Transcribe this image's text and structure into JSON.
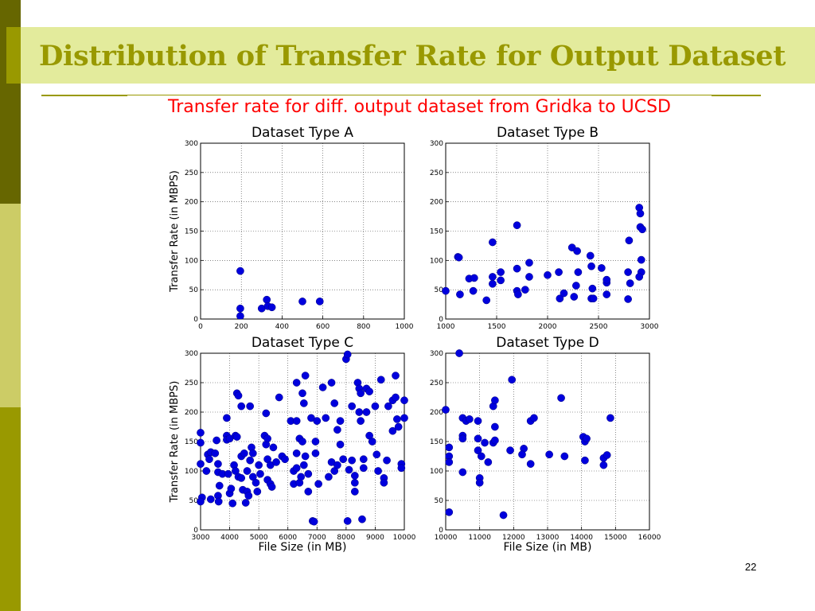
{
  "slide": {
    "title": "Distribution of Transfer Rate for Output Dataset",
    "chart_title": "Transfer rate for diff. output dataset from Gridka to UCSD",
    "page_number": "22",
    "colors": {
      "title_text": "#999900",
      "title_band": "#e3eb9c",
      "sidebar_top": "#666600",
      "sidebar_mid": "#cccc66",
      "sidebar_bottom": "#999900",
      "chart_title": "#ff0000",
      "point": "#0000dd"
    }
  },
  "chart_data": [
    {
      "type": "scatter",
      "title": "Dataset Type A",
      "xlabel": "",
      "ylabel": "Transfer Rate (in MBPS)",
      "xlim": [
        0,
        1000
      ],
      "ylim": [
        0,
        300
      ],
      "xticks": [
        "0",
        "200",
        "400",
        "600",
        "800",
        "1000"
      ],
      "yticks": [
        "0",
        "50",
        "100",
        "150",
        "200",
        "250",
        "300"
      ],
      "grid": true,
      "points": [
        [
          195,
          82
        ],
        [
          195,
          18
        ],
        [
          195,
          5
        ],
        [
          300,
          18
        ],
        [
          325,
          33
        ],
        [
          330,
          22
        ],
        [
          350,
          20
        ],
        [
          500,
          30
        ],
        [
          585,
          30
        ]
      ]
    },
    {
      "type": "scatter",
      "title": "Dataset Type B",
      "xlabel": "",
      "ylabel": "",
      "xlim": [
        1000,
        3000
      ],
      "ylim": [
        0,
        300
      ],
      "xticks": [
        "1000",
        "1500",
        "2000",
        "2500",
        "3000"
      ],
      "yticks": [
        "0",
        "50",
        "100",
        "150",
        "200",
        "250",
        "300"
      ],
      "grid": true,
      "points": [
        [
          1000,
          48
        ],
        [
          1120,
          106
        ],
        [
          1130,
          105
        ],
        [
          1140,
          42
        ],
        [
          1230,
          69
        ],
        [
          1280,
          70
        ],
        [
          1270,
          48
        ],
        [
          1400,
          32
        ],
        [
          1460,
          131
        ],
        [
          1460,
          72
        ],
        [
          1460,
          60
        ],
        [
          1540,
          80
        ],
        [
          1540,
          66
        ],
        [
          1700,
          160
        ],
        [
          1700,
          86
        ],
        [
          1700,
          48
        ],
        [
          1710,
          42
        ],
        [
          1780,
          50
        ],
        [
          1820,
          96
        ],
        [
          1820,
          72
        ],
        [
          2000,
          75
        ],
        [
          2110,
          80
        ],
        [
          2120,
          35
        ],
        [
          2160,
          44
        ],
        [
          2240,
          122
        ],
        [
          2260,
          38
        ],
        [
          2280,
          57
        ],
        [
          2290,
          116
        ],
        [
          2300,
          80
        ],
        [
          2420,
          108
        ],
        [
          2430,
          90
        ],
        [
          2440,
          52
        ],
        [
          2430,
          35
        ],
        [
          2450,
          35
        ],
        [
          2530,
          87
        ],
        [
          2580,
          62
        ],
        [
          2580,
          67
        ],
        [
          2580,
          42
        ],
        [
          2790,
          80
        ],
        [
          2790,
          34
        ],
        [
          2800,
          134
        ],
        [
          2810,
          61
        ],
        [
          2900,
          190
        ],
        [
          2910,
          180
        ],
        [
          2910,
          157
        ],
        [
          2930,
          153
        ],
        [
          2920,
          101
        ],
        [
          2920,
          80
        ],
        [
          2900,
          72
        ]
      ]
    },
    {
      "type": "scatter",
      "title": "Dataset Type C",
      "xlabel": "File Size (in MB)",
      "ylabel": "Transfer Rate (in MBPS)",
      "xlim": [
        3000,
        10000
      ],
      "ylim": [
        0,
        300
      ],
      "xticks": [
        "3000",
        "4000",
        "5000",
        "6000",
        "7000",
        "8000",
        "9000",
        "10000"
      ],
      "yticks": [
        "0",
        "50",
        "100",
        "150",
        "200",
        "250",
        "300"
      ],
      "grid": true,
      "points": [
        [
          3000,
          165
        ],
        [
          3000,
          148
        ],
        [
          3000,
          112
        ],
        [
          3050,
          55
        ],
        [
          3000,
          48
        ],
        [
          3200,
          100
        ],
        [
          3250,
          128
        ],
        [
          3300,
          120
        ],
        [
          3350,
          132
        ],
        [
          3350,
          52
        ],
        [
          3500,
          130
        ],
        [
          3550,
          152
        ],
        [
          3600,
          112
        ],
        [
          3600,
          98
        ],
        [
          3650,
          75
        ],
        [
          3600,
          58
        ],
        [
          3620,
          48
        ],
        [
          3750,
          95
        ],
        [
          3900,
          190
        ],
        [
          3900,
          160
        ],
        [
          3900,
          153
        ],
        [
          3950,
          95
        ],
        [
          4000,
          155
        ],
        [
          4000,
          62
        ],
        [
          4050,
          70
        ],
        [
          4100,
          45
        ],
        [
          4150,
          110
        ],
        [
          4200,
          160
        ],
        [
          4250,
          232
        ],
        [
          4300,
          228
        ],
        [
          4250,
          158
        ],
        [
          4200,
          100
        ],
        [
          4300,
          90
        ],
        [
          4400,
          210
        ],
        [
          4400,
          125
        ],
        [
          4400,
          88
        ],
        [
          4450,
          68
        ],
        [
          4500,
          130
        ],
        [
          4550,
          46
        ],
        [
          4600,
          100
        ],
        [
          4600,
          65
        ],
        [
          4650,
          58
        ],
        [
          4700,
          210
        ],
        [
          4700,
          118
        ],
        [
          4750,
          140
        ],
        [
          4800,
          130
        ],
        [
          4800,
          90
        ],
        [
          4900,
          80
        ],
        [
          4950,
          65
        ],
        [
          5000,
          110
        ],
        [
          5050,
          95
        ],
        [
          5200,
          160
        ],
        [
          5250,
          198
        ],
        [
          5250,
          145
        ],
        [
          5300,
          155
        ],
        [
          5300,
          120
        ],
        [
          5300,
          85
        ],
        [
          5400,
          110
        ],
        [
          5400,
          78
        ],
        [
          5450,
          73
        ],
        [
          5500,
          140
        ],
        [
          5600,
          115
        ],
        [
          5700,
          225
        ],
        [
          5800,
          125
        ],
        [
          5900,
          120
        ],
        [
          6100,
          185
        ],
        [
          6200,
          100
        ],
        [
          6200,
          78
        ],
        [
          6300,
          250
        ],
        [
          6300,
          185
        ],
        [
          6300,
          130
        ],
        [
          6300,
          105
        ],
        [
          6400,
          80
        ],
        [
          6400,
          155
        ],
        [
          6450,
          90
        ],
        [
          6500,
          232
        ],
        [
          6500,
          150
        ],
        [
          6550,
          215
        ],
        [
          6550,
          110
        ],
        [
          6600,
          262
        ],
        [
          6600,
          125
        ],
        [
          6700,
          95
        ],
        [
          6700,
          65
        ],
        [
          6800,
          190
        ],
        [
          6850,
          15
        ],
        [
          6900,
          14
        ],
        [
          6950,
          150
        ],
        [
          6950,
          130
        ],
        [
          7000,
          185
        ],
        [
          7050,
          78
        ],
        [
          7200,
          242
        ],
        [
          7300,
          190
        ],
        [
          7400,
          90
        ],
        [
          7500,
          250
        ],
        [
          7500,
          115
        ],
        [
          7600,
          215
        ],
        [
          7600,
          100
        ],
        [
          7700,
          170
        ],
        [
          7700,
          110
        ],
        [
          7800,
          145
        ],
        [
          7800,
          185
        ],
        [
          7900,
          120
        ],
        [
          8000,
          290
        ],
        [
          8050,
          298
        ],
        [
          8050,
          15
        ],
        [
          8100,
          102
        ],
        [
          8200,
          210
        ],
        [
          8200,
          118
        ],
        [
          8300,
          80
        ],
        [
          8300,
          92
        ],
        [
          8300,
          65
        ],
        [
          8400,
          250
        ],
        [
          8450,
          240
        ],
        [
          8450,
          200
        ],
        [
          8500,
          232
        ],
        [
          8500,
          185
        ],
        [
          8600,
          120
        ],
        [
          8600,
          105
        ],
        [
          8550,
          18
        ],
        [
          8700,
          240
        ],
        [
          8700,
          200
        ],
        [
          8800,
          235
        ],
        [
          8800,
          160
        ],
        [
          8900,
          150
        ],
        [
          9000,
          210
        ],
        [
          9050,
          128
        ],
        [
          9100,
          100
        ],
        [
          9200,
          255
        ],
        [
          9300,
          88
        ],
        [
          9300,
          80
        ],
        [
          9400,
          118
        ],
        [
          9450,
          210
        ],
        [
          9600,
          168
        ],
        [
          9600,
          220
        ],
        [
          9700,
          225
        ],
        [
          9700,
          262
        ],
        [
          9750,
          188
        ],
        [
          9800,
          175
        ],
        [
          9900,
          112
        ],
        [
          9900,
          105
        ],
        [
          10000,
          220
        ],
        [
          10000,
          190
        ]
      ]
    },
    {
      "type": "scatter",
      "title": "Dataset Type D",
      "xlabel": "File Size (in MB)",
      "ylabel": "",
      "xlim": [
        10000,
        16000
      ],
      "ylim": [
        0,
        300
      ],
      "xticks": [
        "10000",
        "11000",
        "12000",
        "13000",
        "14000",
        "15000",
        "16000"
      ],
      "yticks": [
        "0",
        "50",
        "100",
        "150",
        "200",
        "250",
        "300"
      ],
      "grid": true,
      "points": [
        [
          10000,
          204
        ],
        [
          10100,
          140
        ],
        [
          10100,
          125
        ],
        [
          10100,
          115
        ],
        [
          10100,
          30
        ],
        [
          10400,
          300
        ],
        [
          10500,
          190
        ],
        [
          10500,
          160
        ],
        [
          10500,
          155
        ],
        [
          10600,
          185
        ],
        [
          10500,
          98
        ],
        [
          10700,
          188
        ],
        [
          10950,
          185
        ],
        [
          10950,
          155
        ],
        [
          10950,
          135
        ],
        [
          11000,
          88
        ],
        [
          11000,
          80
        ],
        [
          11050,
          125
        ],
        [
          11150,
          148
        ],
        [
          11250,
          115
        ],
        [
          11400,
          210
        ],
        [
          11450,
          220
        ],
        [
          11400,
          148
        ],
        [
          11450,
          152
        ],
        [
          11450,
          175
        ],
        [
          11700,
          25
        ],
        [
          11900,
          135
        ],
        [
          11950,
          255
        ],
        [
          12300,
          138
        ],
        [
          12250,
          128
        ],
        [
          12500,
          185
        ],
        [
          12600,
          190
        ],
        [
          12500,
          112
        ],
        [
          13050,
          128
        ],
        [
          13400,
          224
        ],
        [
          13500,
          125
        ],
        [
          14050,
          158
        ],
        [
          14100,
          150
        ],
        [
          14150,
          155
        ],
        [
          14100,
          118
        ],
        [
          14650,
          122
        ],
        [
          14650,
          110
        ],
        [
          14750,
          127
        ],
        [
          14850,
          190
        ]
      ]
    }
  ]
}
